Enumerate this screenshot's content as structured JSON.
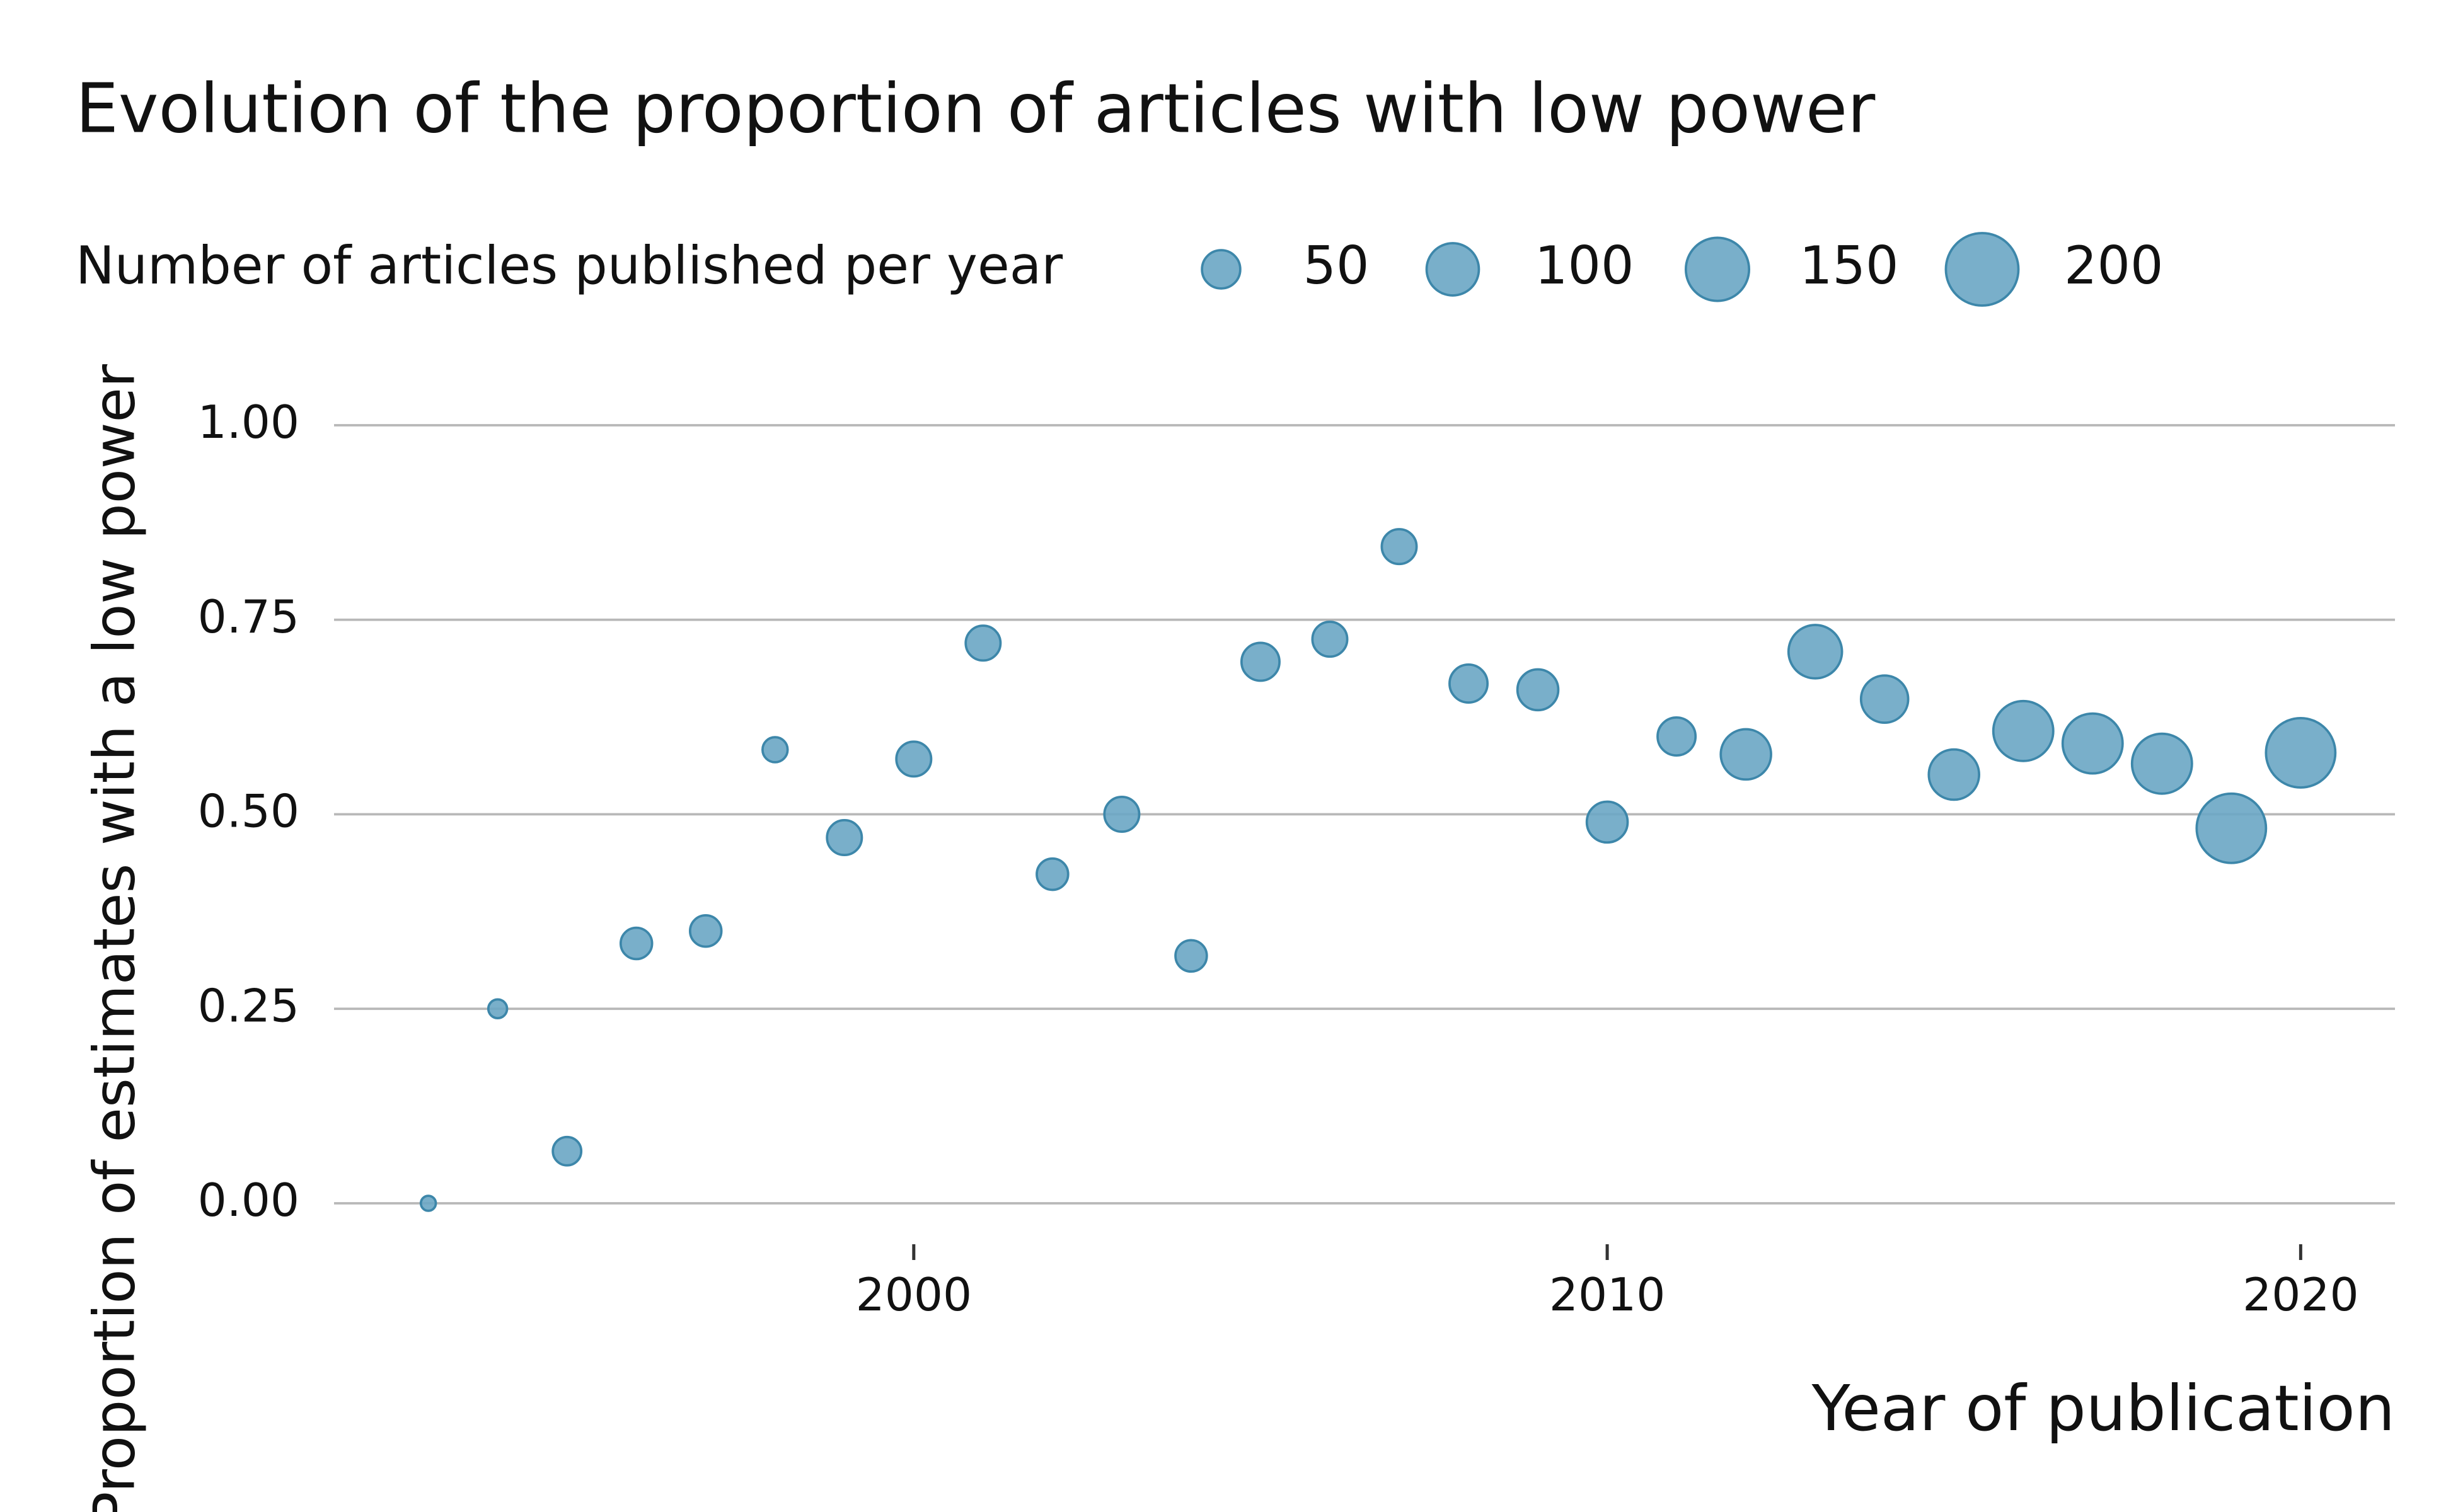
{
  "chart_data": {
    "type": "scatter",
    "title": "Evolution of the proportion of articles with low power",
    "x_label": "Year of publication",
    "y_label": "Proportion of estimates with a low power",
    "size_legend_title": "Number of articles published per year",
    "size_legend": [
      50,
      100,
      150,
      200
    ],
    "color": "#6aa6c4",
    "x": [
      1993,
      1994,
      1995,
      1996,
      1997,
      1998,
      1999,
      2000,
      2001,
      2002,
      2003,
      2004,
      2005,
      2006,
      2007,
      2008,
      2009,
      2010,
      2011,
      2012,
      2013,
      2014,
      2015,
      2016,
      2017,
      2018,
      2019,
      2020
    ],
    "values": [
      0.0,
      0.25,
      0.067,
      0.334,
      0.35,
      0.583,
      0.47,
      0.571,
      0.72,
      0.423,
      0.5,
      0.318,
      0.696,
      0.725,
      0.844,
      0.668,
      0.66,
      0.49,
      0.6,
      0.577,
      0.709,
      0.648,
      0.551,
      0.607,
      0.591,
      0.565,
      0.482,
      0.579
    ],
    "sizes": [
      1,
      6,
      24,
      31,
      31,
      17,
      40,
      40,
      40,
      31,
      40,
      31,
      49,
      40,
      40,
      49,
      58,
      58,
      49,
      92,
      105,
      80,
      92,
      134,
      134,
      134,
      182,
      182
    ],
    "xlim": [
      1991.64,
      2021.36
    ],
    "xticks": [
      2000,
      2010,
      2020
    ],
    "ylim": [
      0,
      1
    ],
    "yticks": [
      {
        "value": 0,
        "label": "0.00"
      },
      {
        "value": 0.25,
        "label": "0.25"
      },
      {
        "value": 0.5,
        "label": "0.50"
      },
      {
        "value": 0.75,
        "label": "0.75"
      },
      {
        "value": 1,
        "label": "1.00"
      }
    ],
    "grid": true
  }
}
